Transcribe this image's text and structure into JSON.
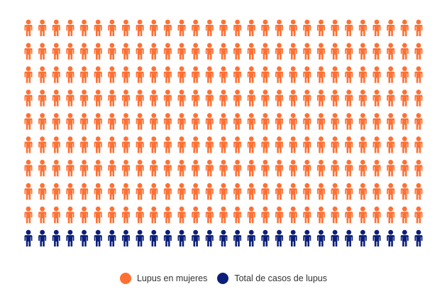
{
  "chart_data": {
    "type": "pictogram",
    "columns": 29,
    "rows": 10,
    "icon": "person-icon",
    "series": [
      {
        "name": "Lupus en mujeres",
        "count": 261,
        "color": "#FF7033"
      },
      {
        "name": "Total de casos de lupus",
        "count": 29,
        "color": "#0B1F7A"
      }
    ]
  },
  "legend": {
    "items": [
      {
        "label": "Lupus en mujeres",
        "color": "#FF7033"
      },
      {
        "label": "Total de casos de lupus",
        "color": "#0B1F7A"
      }
    ]
  }
}
